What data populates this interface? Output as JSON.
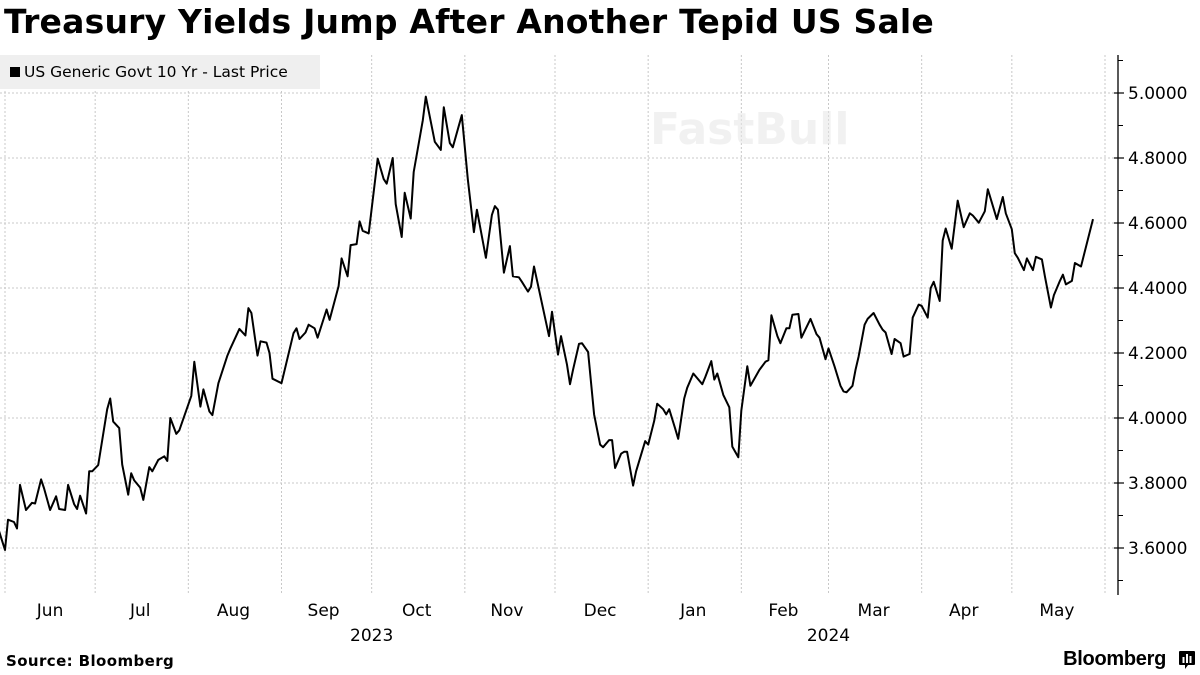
{
  "title": "Treasury Yields Jump After Another Tepid US Sale",
  "source": "Source: Bloomberg",
  "brand": "Bloomberg",
  "watermark": "FastBull",
  "chart_data": {
    "type": "line",
    "title": "Treasury Yields Jump After Another Tepid US Sale",
    "legend": {
      "position": "top-left",
      "entries": [
        "US Generic Govt 10 Yr - Last Price"
      ]
    },
    "line_color": "#000000",
    "grid": true,
    "y_axis": {
      "side": "right",
      "ylim": [
        3.48,
        5.12
      ],
      "ticks": [
        3.6,
        3.8,
        4.0,
        4.2,
        4.4,
        4.6,
        4.8,
        5.0
      ],
      "tick_labels": [
        "3.6000",
        "3.8000",
        "4.0000",
        "4.2000",
        "4.4000",
        "4.6000",
        "4.8000",
        "5.0000"
      ]
    },
    "x_axis": {
      "months": [
        {
          "label": "Jun",
          "date": "2023-06-16"
        },
        {
          "label": "Jul",
          "date": "2023-07-16"
        },
        {
          "label": "Aug",
          "date": "2023-08-16"
        },
        {
          "label": "Sep",
          "date": "2023-09-15"
        },
        {
          "label": "Oct",
          "date": "2023-10-16"
        },
        {
          "label": "Nov",
          "date": "2023-11-15"
        },
        {
          "label": "Dec",
          "date": "2023-12-16"
        },
        {
          "label": "Jan",
          "date": "2024-01-16"
        },
        {
          "label": "Feb",
          "date": "2024-02-15"
        },
        {
          "label": "Mar",
          "date": "2024-03-16"
        },
        {
          "label": "Apr",
          "date": "2024-04-15"
        },
        {
          "label": "May",
          "date": "2024-05-16"
        }
      ],
      "years": [
        {
          "label": "2023",
          "date": "2023-10-01"
        },
        {
          "label": "2024",
          "date": "2024-03-01"
        }
      ]
    },
    "series": [
      {
        "name": "US Generic Govt 10 Yr - Last Price",
        "points": [
          [
            "2023-05-29",
            3.682
          ],
          [
            "2023-06-01",
            3.594
          ],
          [
            "2023-06-02",
            3.687
          ],
          [
            "2023-06-04",
            3.68
          ],
          [
            "2023-06-05",
            3.66
          ],
          [
            "2023-06-06",
            3.794
          ],
          [
            "2023-06-08",
            3.717
          ],
          [
            "2023-06-10",
            3.739
          ],
          [
            "2023-06-11",
            3.737
          ],
          [
            "2023-06-13",
            3.811
          ],
          [
            "2023-06-14",
            3.783
          ],
          [
            "2023-06-16",
            3.717
          ],
          [
            "2023-06-18",
            3.759
          ],
          [
            "2023-06-19",
            3.72
          ],
          [
            "2023-06-21",
            3.717
          ],
          [
            "2023-06-22",
            3.794
          ],
          [
            "2023-06-24",
            3.735
          ],
          [
            "2023-06-25",
            3.72
          ],
          [
            "2023-06-26",
            3.761
          ],
          [
            "2023-06-28",
            3.706
          ],
          [
            "2023-06-29",
            3.836
          ],
          [
            "2023-06-30",
            3.836
          ],
          [
            "2023-07-02",
            3.855
          ],
          [
            "2023-07-05",
            4.027
          ],
          [
            "2023-07-06",
            4.06
          ],
          [
            "2023-07-07",
            3.989
          ],
          [
            "2023-07-09",
            3.969
          ],
          [
            "2023-07-10",
            3.857
          ],
          [
            "2023-07-12",
            3.764
          ],
          [
            "2023-07-13",
            3.83
          ],
          [
            "2023-07-14",
            3.808
          ],
          [
            "2023-07-16",
            3.786
          ],
          [
            "2023-07-17",
            3.748
          ],
          [
            "2023-07-19",
            3.849
          ],
          [
            "2023-07-20",
            3.836
          ],
          [
            "2023-07-22",
            3.871
          ],
          [
            "2023-07-24",
            3.882
          ],
          [
            "2023-07-25",
            3.868
          ],
          [
            "2023-07-26",
            4.0
          ],
          [
            "2023-07-28",
            3.951
          ],
          [
            "2023-07-29",
            3.962
          ],
          [
            "2023-08-02",
            4.068
          ],
          [
            "2023-08-03",
            4.173
          ],
          [
            "2023-08-05",
            4.035
          ],
          [
            "2023-08-06",
            4.088
          ],
          [
            "2023-08-08",
            4.02
          ],
          [
            "2023-08-09",
            4.009
          ],
          [
            "2023-08-11",
            4.107
          ],
          [
            "2023-08-14",
            4.192
          ],
          [
            "2023-08-15",
            4.214
          ],
          [
            "2023-08-18",
            4.274
          ],
          [
            "2023-08-20",
            4.254
          ],
          [
            "2023-08-21",
            4.338
          ],
          [
            "2023-08-22",
            4.323
          ],
          [
            "2023-08-24",
            4.192
          ],
          [
            "2023-08-25",
            4.236
          ],
          [
            "2023-08-27",
            4.232
          ],
          [
            "2023-08-28",
            4.2
          ],
          [
            "2023-08-29",
            4.121
          ],
          [
            "2023-09-01",
            4.107
          ],
          [
            "2023-09-05",
            4.261
          ],
          [
            "2023-09-06",
            4.276
          ],
          [
            "2023-09-07",
            4.243
          ],
          [
            "2023-09-09",
            4.263
          ],
          [
            "2023-09-10",
            4.287
          ],
          [
            "2023-09-12",
            4.276
          ],
          [
            "2023-09-13",
            4.247
          ],
          [
            "2023-09-16",
            4.334
          ],
          [
            "2023-09-17",
            4.302
          ],
          [
            "2023-09-20",
            4.406
          ],
          [
            "2023-09-21",
            4.491
          ],
          [
            "2023-09-23",
            4.436
          ],
          [
            "2023-09-24",
            4.532
          ],
          [
            "2023-09-26",
            4.535
          ],
          [
            "2023-09-27",
            4.605
          ],
          [
            "2023-09-28",
            4.576
          ],
          [
            "2023-09-30",
            4.568
          ],
          [
            "2023-10-03",
            4.798
          ],
          [
            "2023-10-05",
            4.735
          ],
          [
            "2023-10-06",
            4.721
          ],
          [
            "2023-10-08",
            4.8
          ],
          [
            "2023-10-09",
            4.658
          ],
          [
            "2023-10-11",
            4.557
          ],
          [
            "2023-10-12",
            4.693
          ],
          [
            "2023-10-14",
            4.614
          ],
          [
            "2023-10-15",
            4.757
          ],
          [
            "2023-10-18",
            4.916
          ],
          [
            "2023-10-19",
            4.989
          ],
          [
            "2023-10-22",
            4.85
          ],
          [
            "2023-10-24",
            4.825
          ],
          [
            "2023-10-25",
            4.956
          ],
          [
            "2023-10-27",
            4.846
          ],
          [
            "2023-10-28",
            4.833
          ],
          [
            "2023-10-30",
            4.899
          ],
          [
            "2023-10-31",
            4.932
          ],
          [
            "2023-11-02",
            4.735
          ],
          [
            "2023-11-04",
            4.572
          ],
          [
            "2023-11-05",
            4.641
          ],
          [
            "2023-11-08",
            4.493
          ],
          [
            "2023-11-10",
            4.625
          ],
          [
            "2023-11-11",
            4.652
          ],
          [
            "2023-11-12",
            4.641
          ],
          [
            "2023-11-14",
            4.447
          ],
          [
            "2023-11-16",
            4.529
          ],
          [
            "2023-11-17",
            4.436
          ],
          [
            "2023-11-19",
            4.433
          ],
          [
            "2023-11-20",
            4.419
          ],
          [
            "2023-11-22",
            4.389
          ],
          [
            "2023-11-23",
            4.404
          ],
          [
            "2023-11-24",
            4.466
          ],
          [
            "2023-11-29",
            4.252
          ],
          [
            "2023-11-30",
            4.327
          ],
          [
            "2023-12-02",
            4.195
          ],
          [
            "2023-12-03",
            4.252
          ],
          [
            "2023-12-05",
            4.164
          ],
          [
            "2023-12-06",
            4.104
          ],
          [
            "2023-12-07",
            4.148
          ],
          [
            "2023-12-09",
            4.228
          ],
          [
            "2023-12-10",
            4.23
          ],
          [
            "2023-12-12",
            4.203
          ],
          [
            "2023-12-14",
            4.011
          ],
          [
            "2023-12-16",
            3.918
          ],
          [
            "2023-12-17",
            3.91
          ],
          [
            "2023-12-19",
            3.932
          ],
          [
            "2023-12-20",
            3.932
          ],
          [
            "2023-12-21",
            3.846
          ],
          [
            "2023-12-23",
            3.89
          ],
          [
            "2023-12-24",
            3.896
          ],
          [
            "2023-12-25",
            3.896
          ],
          [
            "2023-12-27",
            3.792
          ],
          [
            "2023-12-28",
            3.836
          ],
          [
            "2023-12-31",
            3.929
          ],
          [
            "2024-01-01",
            3.918
          ],
          [
            "2024-01-03",
            3.991
          ],
          [
            "2024-01-04",
            4.044
          ],
          [
            "2024-01-06",
            4.027
          ],
          [
            "2024-01-07",
            4.011
          ],
          [
            "2024-01-08",
            4.027
          ],
          [
            "2024-01-10",
            3.967
          ],
          [
            "2024-01-11",
            3.936
          ],
          [
            "2024-01-13",
            4.06
          ],
          [
            "2024-01-14",
            4.093
          ],
          [
            "2024-01-16",
            4.137
          ],
          [
            "2024-01-19",
            4.104
          ],
          [
            "2024-01-20",
            4.126
          ],
          [
            "2024-01-22",
            4.175
          ],
          [
            "2024-01-23",
            4.118
          ],
          [
            "2024-01-24",
            4.137
          ],
          [
            "2024-01-26",
            4.071
          ],
          [
            "2024-01-28",
            4.033
          ],
          [
            "2024-01-29",
            3.912
          ],
          [
            "2024-01-31",
            3.879
          ],
          [
            "2024-02-01",
            4.022
          ],
          [
            "2024-02-03",
            4.159
          ],
          [
            "2024-02-04",
            4.099
          ],
          [
            "2024-02-07",
            4.148
          ],
          [
            "2024-02-09",
            4.173
          ],
          [
            "2024-02-10",
            4.178
          ],
          [
            "2024-02-11",
            4.316
          ],
          [
            "2024-02-13",
            4.252
          ],
          [
            "2024-02-14",
            4.23
          ],
          [
            "2024-02-16",
            4.276
          ],
          [
            "2024-02-17",
            4.276
          ],
          [
            "2024-02-18",
            4.318
          ],
          [
            "2024-02-20",
            4.32
          ],
          [
            "2024-02-21",
            4.247
          ],
          [
            "2024-02-24",
            4.305
          ],
          [
            "2024-02-26",
            4.258
          ],
          [
            "2024-02-27",
            4.247
          ],
          [
            "2024-02-29",
            4.181
          ],
          [
            "2024-03-01",
            4.214
          ],
          [
            "2024-03-03",
            4.159
          ],
          [
            "2024-03-05",
            4.099
          ],
          [
            "2024-03-06",
            4.082
          ],
          [
            "2024-03-07",
            4.079
          ],
          [
            "2024-03-09",
            4.099
          ],
          [
            "2024-03-10",
            4.148
          ],
          [
            "2024-03-11",
            4.189
          ],
          [
            "2024-03-13",
            4.287
          ],
          [
            "2024-03-14",
            4.305
          ],
          [
            "2024-03-16",
            4.323
          ],
          [
            "2024-03-18",
            4.287
          ],
          [
            "2024-03-19",
            4.272
          ],
          [
            "2024-03-20",
            4.263
          ],
          [
            "2024-03-22",
            4.197
          ],
          [
            "2024-03-23",
            4.243
          ],
          [
            "2024-03-25",
            4.23
          ],
          [
            "2024-03-26",
            4.189
          ],
          [
            "2024-03-28",
            4.197
          ],
          [
            "2024-03-29",
            4.309
          ],
          [
            "2024-03-31",
            4.349
          ],
          [
            "2024-04-01",
            4.345
          ],
          [
            "2024-04-03",
            4.309
          ],
          [
            "2024-04-04",
            4.4
          ],
          [
            "2024-04-05",
            4.419
          ],
          [
            "2024-04-07",
            4.36
          ],
          [
            "2024-04-08",
            4.546
          ],
          [
            "2024-04-09",
            4.583
          ],
          [
            "2024-04-11",
            4.521
          ],
          [
            "2024-04-13",
            4.669
          ],
          [
            "2024-04-15",
            4.587
          ],
          [
            "2024-04-17",
            4.63
          ],
          [
            "2024-04-18",
            4.623
          ],
          [
            "2024-04-20",
            4.601
          ],
          [
            "2024-04-22",
            4.636
          ],
          [
            "2024-04-23",
            4.704
          ],
          [
            "2024-04-26",
            4.612
          ],
          [
            "2024-04-28",
            4.68
          ],
          [
            "2024-04-29",
            4.63
          ],
          [
            "2024-05-01",
            4.581
          ],
          [
            "2024-05-02",
            4.507
          ],
          [
            "2024-05-03",
            4.493
          ],
          [
            "2024-05-05",
            4.455
          ],
          [
            "2024-05-06",
            4.491
          ],
          [
            "2024-05-08",
            4.455
          ],
          [
            "2024-05-09",
            4.496
          ],
          [
            "2024-05-11",
            4.488
          ],
          [
            "2024-05-12",
            4.436
          ],
          [
            "2024-05-14",
            4.34
          ],
          [
            "2024-05-15",
            4.378
          ],
          [
            "2024-05-17",
            4.422
          ],
          [
            "2024-05-18",
            4.441
          ],
          [
            "2024-05-19",
            4.411
          ],
          [
            "2024-05-21",
            4.422
          ],
          [
            "2024-05-22",
            4.477
          ],
          [
            "2024-05-24",
            4.466
          ],
          [
            "2024-05-28",
            4.612
          ]
        ]
      }
    ]
  }
}
